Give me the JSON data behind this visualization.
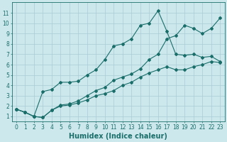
{
  "title": "",
  "xlabel": "Humidex (Indice chaleur)",
  "bg_color": "#cce8ec",
  "line_color": "#1a6e6a",
  "grid_color": "#aaccd4",
  "xlim": [
    -0.5,
    23.5
  ],
  "ylim": [
    0.5,
    12.0
  ],
  "xticks": [
    0,
    1,
    2,
    3,
    4,
    5,
    6,
    7,
    8,
    9,
    10,
    11,
    12,
    13,
    14,
    15,
    16,
    17,
    18,
    19,
    20,
    21,
    22,
    23
  ],
  "yticks": [
    1,
    2,
    3,
    4,
    5,
    6,
    7,
    8,
    9,
    10,
    11
  ],
  "line_peak_x": [
    0,
    1,
    2,
    3,
    4,
    5,
    6,
    7,
    8,
    9,
    10,
    11,
    12,
    13,
    14,
    15,
    16,
    17,
    18,
    19,
    20,
    21,
    22,
    23
  ],
  "line_peak_y": [
    1.7,
    1.4,
    1.0,
    3.4,
    3.6,
    4.3,
    4.3,
    4.4,
    5.0,
    5.5,
    6.5,
    7.8,
    8.0,
    8.5,
    9.8,
    10.0,
    11.2,
    9.2,
    7.0,
    6.9,
    7.0,
    6.7,
    6.8,
    6.3
  ],
  "line_upper_x": [
    0,
    1,
    2,
    3,
    4,
    5,
    6,
    7,
    8,
    9,
    10,
    11,
    12,
    13,
    14,
    15,
    16,
    17,
    18,
    19,
    20,
    21,
    22,
    23
  ],
  "line_upper_y": [
    1.7,
    1.4,
    1.0,
    0.9,
    1.6,
    2.1,
    2.2,
    2.5,
    3.0,
    3.5,
    3.8,
    4.5,
    4.8,
    5.1,
    5.6,
    6.5,
    7.0,
    8.5,
    8.8,
    9.8,
    9.5,
    9.0,
    9.5,
    10.5
  ],
  "line_lower_x": [
    0,
    1,
    2,
    3,
    4,
    5,
    6,
    7,
    8,
    9,
    10,
    11,
    12,
    13,
    14,
    15,
    16,
    17,
    18,
    19,
    20,
    21,
    22,
    23
  ],
  "line_lower_y": [
    1.7,
    1.4,
    1.0,
    0.9,
    1.6,
    2.0,
    2.1,
    2.3,
    2.6,
    3.0,
    3.2,
    3.5,
    4.0,
    4.3,
    4.8,
    5.2,
    5.5,
    5.8,
    5.5,
    5.5,
    5.8,
    6.0,
    6.3,
    6.2
  ],
  "marker": "D",
  "markersize": 2.0,
  "linewidth": 0.8,
  "xlabel_fontsize": 7,
  "tick_fontsize": 5.5
}
